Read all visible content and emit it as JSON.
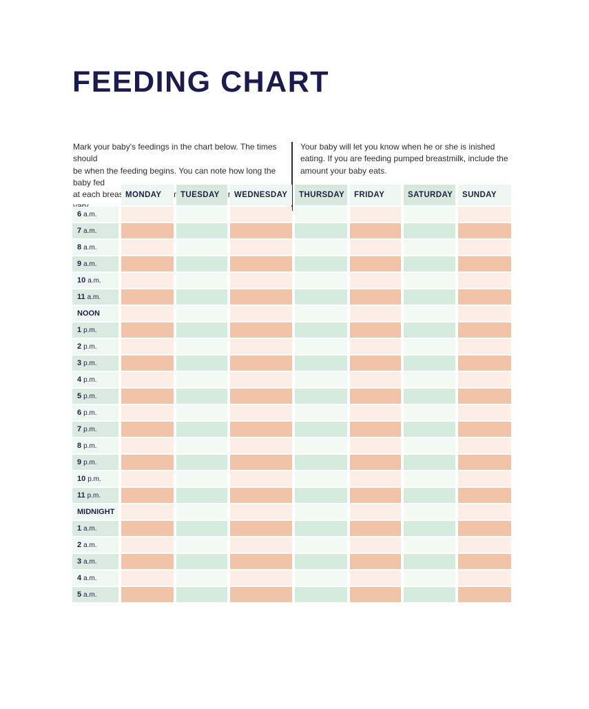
{
  "page": {
    "title": "FEEDING CHART"
  },
  "intro": {
    "left": "Mark your baby's feedings in the chart below. The times should\nbe when the feeding begins. You can note how long the baby fed\nat each breast. But keep in mind that feeding times will vary.",
    "right": "Your baby will let you know when he or she is inished\neating. If you are feeding pumped breastmilk, include the\namount your baby eats."
  },
  "table": {
    "days": [
      {
        "label": "MONDAY",
        "tone": "peach"
      },
      {
        "label": "TUESDAY",
        "tone": "mint"
      },
      {
        "label": "WEDNESDAY",
        "tone": "peach"
      },
      {
        "label": "THURSDAY",
        "tone": "mint"
      },
      {
        "label": "FRIDAY",
        "tone": "peach"
      },
      {
        "label": "SATURDAY",
        "tone": "mint"
      },
      {
        "label": "SUNDAY",
        "tone": "peach"
      }
    ],
    "rows": [
      {
        "time": "6",
        "suffix": "a.m.",
        "shade": "light"
      },
      {
        "time": "7",
        "suffix": "a.m.",
        "shade": "dark"
      },
      {
        "time": "8",
        "suffix": "a.m.",
        "shade": "light"
      },
      {
        "time": "9",
        "suffix": "a.m.",
        "shade": "dark"
      },
      {
        "time": "10",
        "suffix": "a.m.",
        "shade": "light"
      },
      {
        "time": "11",
        "suffix": "a.m.",
        "shade": "dark"
      },
      {
        "time": "NOON",
        "suffix": "",
        "shade": "light"
      },
      {
        "time": "1",
        "suffix": "p.m.",
        "shade": "dark"
      },
      {
        "time": "2",
        "suffix": "p.m.",
        "shade": "light"
      },
      {
        "time": "3",
        "suffix": "p.m.",
        "shade": "dark"
      },
      {
        "time": "4",
        "suffix": "p.m.",
        "shade": "light"
      },
      {
        "time": "5",
        "suffix": "p.m.",
        "shade": "dark"
      },
      {
        "time": "6",
        "suffix": "p.m.",
        "shade": "light"
      },
      {
        "time": "7",
        "suffix": "p.m.",
        "shade": "dark"
      },
      {
        "time": "8",
        "suffix": "p.m.",
        "shade": "light"
      },
      {
        "time": "9",
        "suffix": "p.m.",
        "shade": "dark"
      },
      {
        "time": "10",
        "suffix": "p.m.",
        "shade": "light"
      },
      {
        "time": "11",
        "suffix": "p.m.",
        "shade": "dark"
      },
      {
        "time": "MIDNIGHT",
        "suffix": "",
        "shade": "light"
      },
      {
        "time": "1",
        "suffix": "a.m.",
        "shade": "dark"
      },
      {
        "time": "2",
        "suffix": "a.m.",
        "shade": "light"
      },
      {
        "time": "3",
        "suffix": "a.m.",
        "shade": "dark"
      },
      {
        "time": "4",
        "suffix": "a.m.",
        "shade": "light"
      },
      {
        "time": "5",
        "suffix": "a.m.",
        "shade": "dark"
      }
    ]
  },
  "colors": {
    "title_navy": "#1b1b4d",
    "header_text_navy": "#1c2147",
    "peach_strong": "#f1c4a9",
    "peach_light": "#fbeee6",
    "mint_strong": "#d5ebde",
    "mint_light": "#f3f9f5",
    "header_mint": "#d7e9dd",
    "header_pale": "#edf6f1",
    "time_col_dark": "#daeae0",
    "time_col_light": "#f0f8f3",
    "body_text": "#2d2d2d",
    "divider": "#2a2a2a"
  }
}
